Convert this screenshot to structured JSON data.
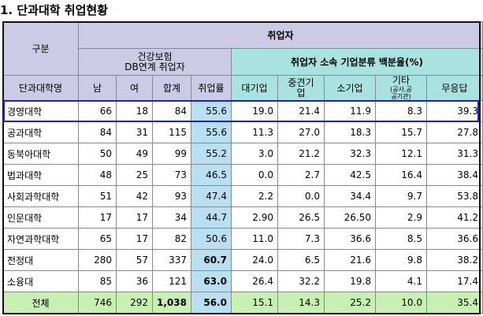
{
  "title": "1. 단과대학 취업현황",
  "header": {
    "group": "구분",
    "employed": "취업자",
    "insurance_line1": "건강보험",
    "insurance_line2": "DB연계 취업자",
    "dist": "취업자 소속 기업분류 백분율(%)",
    "college": "단과대학명",
    "male": "남",
    "female": "여",
    "sum": "합계",
    "rate": "취업률",
    "large": "대기업",
    "mid_line1": "중견기",
    "mid_line2": "업",
    "small": "소기업",
    "other_line1": "기타",
    "other_line2": "(공사,공",
    "other_line3": "공기관)",
    "none": "무응답"
  },
  "rows": [
    {
      "name": "경영대학",
      "male": "66",
      "female": "18",
      "sum": "84",
      "rate": "55.6",
      "large": "19.0",
      "mid": "21.4",
      "small": "11.9",
      "other": "8.3",
      "none": "39.3"
    },
    {
      "name": "공과대학",
      "male": "84",
      "female": "31",
      "sum": "115",
      "rate": "55.6",
      "large": "11.3",
      "mid": "27.0",
      "small": "18.3",
      "other": "15.7",
      "none": "27.8"
    },
    {
      "name": "동북아대학",
      "male": "50",
      "female": "49",
      "sum": "99",
      "rate": "55.2",
      "large": "3.0",
      "mid": "21.2",
      "small": "32.3",
      "other": "12.1",
      "none": "31.3"
    },
    {
      "name": "법과대학",
      "male": "48",
      "female": "25",
      "sum": "73",
      "rate": "46.5",
      "large": "0.0",
      "mid": "2.7",
      "small": "42.5",
      "other": "16.4",
      "none": "38.4"
    },
    {
      "name": "사회과학대학",
      "male": "51",
      "female": "42",
      "sum": "93",
      "rate": "47.4",
      "large": "2.2",
      "mid": "0.0",
      "small": "34.4",
      "other": "9.7",
      "none": "53.8"
    },
    {
      "name": "인문대학",
      "male": "17",
      "female": "17",
      "sum": "34",
      "rate": "44.7",
      "large": "2.90",
      "mid": "26.5",
      "small": "26.50",
      "other": "2.9",
      "none": "41.2"
    },
    {
      "name": "자연과학대학",
      "male": "65",
      "female": "17",
      "sum": "82",
      "rate": "50.6",
      "large": "11.0",
      "mid": "7.3",
      "small": "36.6",
      "other": "8.5",
      "none": "36.6"
    },
    {
      "name": "전정대",
      "male": "280",
      "female": "57",
      "sum": "337",
      "rate": "60.7",
      "large": "24.0",
      "mid": "6.5",
      "small": "21.6",
      "other": "9.8",
      "none": "38.2"
    },
    {
      "name": "소융대",
      "male": "85",
      "female": "36",
      "sum": "121",
      "rate": "63.0",
      "large": "26.4",
      "mid": "32.2",
      "small": "19.8",
      "other": "4.1",
      "none": "17.4"
    }
  ],
  "total": {
    "name": "전체",
    "male": "746",
    "female": "292",
    "sum": "1,038",
    "rate": "56.0",
    "large": "15.1",
    "mid": "14.3",
    "small": "25.2",
    "other": "10.0",
    "none": "35.4"
  }
}
